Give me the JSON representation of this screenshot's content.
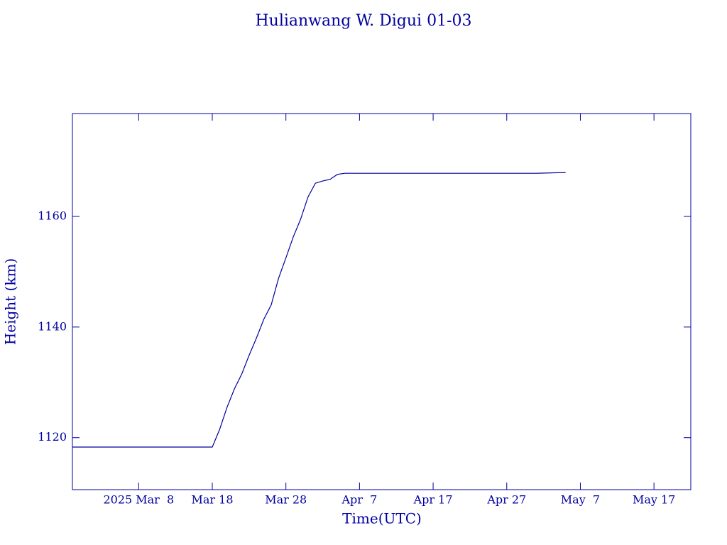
{
  "chart_data": {
    "type": "line",
    "title": "Hulianwang W. Digui 01-03",
    "x_label": "Time(UTC)",
    "y_label": "Height (km)",
    "color": "#0000a0",
    "x": [
      "2025-02-27",
      "2025-03-18",
      "2025-03-19",
      "2025-03-20",
      "2025-03-21",
      "2025-03-22",
      "2025-03-23",
      "2025-03-24",
      "2025-03-25",
      "2025-03-26",
      "2025-03-27",
      "2025-03-28",
      "2025-03-29",
      "2025-03-30",
      "2025-03-31",
      "2025-04-01",
      "2025-04-02",
      "2025-04-03",
      "2025-04-04",
      "2025-04-05",
      "2025-05-01",
      "2025-05-04",
      "2025-05-05"
    ],
    "series": [
      {
        "name": "Height",
        "color": "#0000a0",
        "values": [
          1118.3,
          1118.3,
          1121.5,
          1125.5,
          1128.8,
          1131.5,
          1134.9,
          1138,
          1141.4,
          1144,
          1148.8,
          1152.5,
          1156.3,
          1159.5,
          1163.5,
          1166,
          1166.4,
          1166.7,
          1167.6,
          1167.8,
          1167.8,
          1167.9,
          1167.9
        ]
      }
    ],
    "xlim": [
      "2025-02-27",
      "2025-05-22"
    ],
    "xticks": [
      {
        "value": "2025-03-08",
        "label": "2025 Mar  8"
      },
      {
        "value": "2025-03-18",
        "label": "Mar 18"
      },
      {
        "value": "2025-03-28",
        "label": "Mar 28"
      },
      {
        "value": "2025-04-07",
        "label": "Apr  7"
      },
      {
        "value": "2025-04-17",
        "label": "Apr 17"
      },
      {
        "value": "2025-04-27",
        "label": "Apr 27"
      },
      {
        "value": "2025-05-07",
        "label": "May  7"
      },
      {
        "value": "2025-05-17",
        "label": "May 17"
      }
    ],
    "ylim": [
      1110.6,
      1178.6
    ],
    "yticks": [
      1120,
      1140,
      1160
    ]
  }
}
